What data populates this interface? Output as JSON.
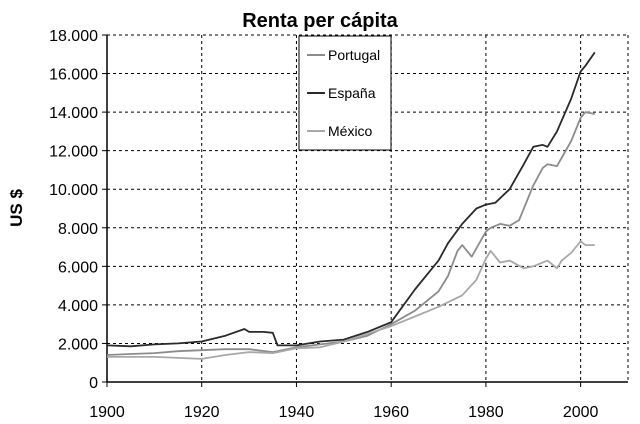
{
  "chart_data": {
    "type": "line",
    "title": "Renta per cápita",
    "xlabel": "",
    "ylabel": "US $",
    "xlim": [
      1900,
      2010
    ],
    "ylim": [
      0,
      18000
    ],
    "xticks": [
      1900,
      1920,
      1940,
      1960,
      1980,
      2000
    ],
    "xtick_labels": [
      "1900",
      "1920",
      "1940",
      "1960",
      "1980",
      "2000"
    ],
    "yticks": [
      0,
      2000,
      4000,
      6000,
      8000,
      10000,
      12000,
      14000,
      16000,
      18000
    ],
    "ytick_labels": [
      "0",
      "2.000",
      "4.000",
      "6.000",
      "8.000",
      "10.000",
      "12.000",
      "14.000",
      "16.000",
      "18.000"
    ],
    "grid": true,
    "legend": "top-center",
    "series": [
      {
        "name": "Portugal",
        "color": "#8c8c8c",
        "x": [
          1900,
          1905,
          1910,
          1915,
          1920,
          1925,
          1930,
          1935,
          1940,
          1945,
          1950,
          1955,
          1960,
          1965,
          1970,
          1972,
          1974,
          1975,
          1977,
          1980,
          1981,
          1983,
          1985,
          1987,
          1990,
          1992,
          1993,
          1995,
          1998,
          2000,
          2001,
          2003
        ],
        "y": [
          1400,
          1450,
          1500,
          1600,
          1650,
          1700,
          1700,
          1550,
          1800,
          1950,
          2100,
          2400,
          3000,
          3700,
          4700,
          5500,
          6800,
          7100,
          6500,
          7800,
          8000,
          8200,
          8100,
          8400,
          10200,
          11100,
          11300,
          11200,
          12500,
          13700,
          14000,
          13900
        ]
      },
      {
        "name": "España",
        "color": "#2a2a2a",
        "x": [
          1900,
          1905,
          1910,
          1915,
          1920,
          1925,
          1929,
          1930,
          1933,
          1935,
          1936,
          1940,
          1945,
          1950,
          1955,
          1960,
          1965,
          1970,
          1972,
          1975,
          1978,
          1980,
          1982,
          1985,
          1988,
          1990,
          1992,
          1993,
          1995,
          1998,
          2000,
          2001,
          2003
        ],
        "y": [
          1900,
          1850,
          1950,
          2000,
          2100,
          2400,
          2750,
          2600,
          2600,
          2550,
          1900,
          1900,
          2100,
          2200,
          2600,
          3100,
          4800,
          6300,
          7200,
          8200,
          9000,
          9200,
          9300,
          10000,
          11300,
          12200,
          12300,
          12200,
          13000,
          14700,
          16100,
          16400,
          17100
        ]
      },
      {
        "name": "México",
        "color": "#a8a8a8",
        "x": [
          1900,
          1905,
          1910,
          1915,
          1920,
          1925,
          1930,
          1935,
          1940,
          1945,
          1950,
          1955,
          1960,
          1965,
          1970,
          1975,
          1978,
          1980,
          1981,
          1983,
          1985,
          1988,
          1990,
          1993,
          1995,
          1996,
          1998,
          2000,
          2001,
          2003
        ],
        "y": [
          1300,
          1300,
          1300,
          1250,
          1200,
          1400,
          1550,
          1500,
          1750,
          1800,
          2100,
          2500,
          2900,
          3400,
          3900,
          4500,
          5300,
          6400,
          6800,
          6200,
          6300,
          5900,
          6000,
          6300,
          5900,
          6300,
          6700,
          7300,
          7100,
          7100
        ]
      }
    ]
  }
}
